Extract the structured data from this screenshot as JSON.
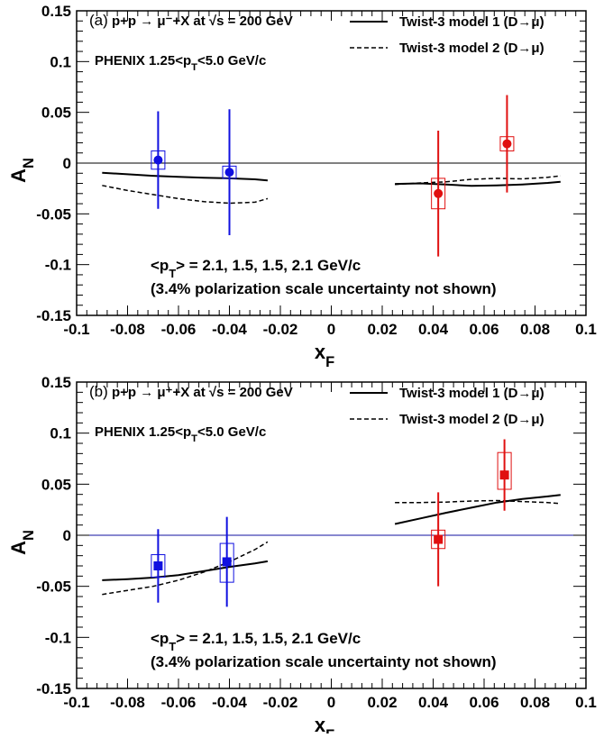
{
  "chart_data": [
    {
      "type": "scatter",
      "panel_label": "(a)",
      "reaction": "p+p → μ⁻+X at √s = 200 GeV",
      "experiment_label": "PHENIX  1.25<p_T<5.0 GeV/c",
      "xlabel": "x_F",
      "ylabel": "A_N",
      "xlim": [
        -0.1,
        0.1
      ],
      "ylim": [
        -0.15,
        0.15
      ],
      "x_ticks": [
        -0.1,
        -0.08,
        -0.06,
        -0.04,
        -0.02,
        0,
        0.02,
        0.04,
        0.06,
        0.08,
        0.1
      ],
      "x_tick_labels": [
        "-0.1",
        "-0.08",
        "-0.06",
        "-0.04",
        "-0.02",
        "0",
        "0.02",
        "0.04",
        "0.06",
        "0.08",
        "0.1"
      ],
      "y_ticks": [
        -0.15,
        -0.1,
        -0.05,
        0,
        0.05,
        0.1,
        0.15
      ],
      "y_tick_labels": [
        "-0.15",
        "-0.1",
        "-0.05",
        "0",
        "0.05",
        "0.1",
        "0.15"
      ],
      "marker": "circle",
      "annotation_pt": "<p_T> = 2.1, 1.5, 1.5, 2.1 GeV/c",
      "annotation_pol": "(3.4% polarization scale uncertainty not shown)",
      "zero_line_color": "#000000",
      "data_points": [
        {
          "x": -0.068,
          "y": 0.003,
          "stat_err": 0.048,
          "sys_low": 0.009,
          "sys_high": 0.009,
          "color": "#1010e0"
        },
        {
          "x": -0.04,
          "y": -0.009,
          "stat_err": 0.062,
          "sys_low": 0.006,
          "sys_high": 0.006,
          "color": "#1010e0"
        },
        {
          "x": 0.042,
          "y": -0.03,
          "stat_err": 0.062,
          "sys_low": 0.015,
          "sys_high": 0.015,
          "color": "#e01010"
        },
        {
          "x": 0.069,
          "y": 0.019,
          "stat_err": 0.048,
          "sys_low": 0.007,
          "sys_high": 0.007,
          "color": "#e01010"
        }
      ],
      "series": [
        {
          "name": "Twist-3 model 1 (D→μ)",
          "style": "solid",
          "x": [
            -0.09,
            -0.08,
            -0.07,
            -0.06,
            -0.05,
            -0.04,
            -0.03,
            -0.025
          ],
          "y": [
            -0.0095,
            -0.011,
            -0.0125,
            -0.0135,
            -0.0145,
            -0.015,
            -0.016,
            -0.017
          ]
        },
        {
          "name": "Twist-3 model 1 (D→μ)",
          "style": "solid",
          "x": [
            0.025,
            0.035,
            0.045,
            0.055,
            0.065,
            0.075,
            0.085,
            0.09
          ],
          "y": [
            -0.0205,
            -0.02,
            -0.021,
            -0.0225,
            -0.022,
            -0.021,
            -0.0195,
            -0.0185
          ]
        },
        {
          "name": "Twist-3 model 2 (D→μ)",
          "style": "dashed",
          "x": [
            -0.09,
            -0.08,
            -0.07,
            -0.06,
            -0.05,
            -0.04,
            -0.03,
            -0.025
          ],
          "y": [
            -0.022,
            -0.027,
            -0.031,
            -0.035,
            -0.038,
            -0.0395,
            -0.0385,
            -0.035
          ]
        },
        {
          "name": "Twist-3 model 2 (D→μ)",
          "style": "dashed",
          "x": [
            0.025,
            0.035,
            0.045,
            0.055,
            0.065,
            0.075,
            0.085,
            0.09
          ],
          "y": [
            -0.021,
            -0.0195,
            -0.0185,
            -0.016,
            -0.015,
            -0.0155,
            -0.014,
            -0.0125
          ]
        }
      ],
      "legend": [
        {
          "label": "Twist-3 model 1 (D→μ)",
          "style": "solid"
        },
        {
          "label": "Twist-3 model 2 (D→μ)",
          "style": "dashed"
        }
      ]
    },
    {
      "type": "scatter",
      "panel_label": "(b)",
      "reaction": "p+p → μ⁺+X at √s = 200 GeV",
      "experiment_label": "PHENIX  1.25<p_T<5.0 GeV/c",
      "xlabel": "x_F",
      "ylabel": "A_N",
      "xlim": [
        -0.1,
        0.1
      ],
      "ylim": [
        -0.15,
        0.15
      ],
      "x_ticks": [
        -0.1,
        -0.08,
        -0.06,
        -0.04,
        -0.02,
        0,
        0.02,
        0.04,
        0.06,
        0.08,
        0.1
      ],
      "x_tick_labels": [
        "-0.1",
        "-0.08",
        "-0.06",
        "-0.04",
        "-0.02",
        "0",
        "0.02",
        "0.04",
        "0.06",
        "0.08",
        "0.1"
      ],
      "y_ticks": [
        -0.15,
        -0.1,
        -0.05,
        0,
        0.05,
        0.1,
        0.15
      ],
      "y_tick_labels": [
        "-0.15",
        "-0.1",
        "-0.05",
        "0",
        "0.05",
        "0.1",
        "0.15"
      ],
      "marker": "square",
      "annotation_pt": "<p_T> = 2.1, 1.5, 1.5, 2.1 GeV/c",
      "annotation_pol": "(3.4% polarization scale uncertainty not shown)",
      "zero_line_color": "#1010a0",
      "data_points": [
        {
          "x": -0.068,
          "y": -0.03,
          "stat_err": 0.036,
          "sys_low": 0.011,
          "sys_high": 0.011,
          "color": "#1010e0"
        },
        {
          "x": -0.041,
          "y": -0.026,
          "stat_err": 0.044,
          "sys_low": 0.02,
          "sys_high": 0.018,
          "color": "#1010e0"
        },
        {
          "x": 0.042,
          "y": -0.004,
          "stat_err": 0.046,
          "sys_low": 0.009,
          "sys_high": 0.009,
          "color": "#e01010"
        },
        {
          "x": 0.068,
          "y": 0.059,
          "stat_err": 0.035,
          "sys_low": 0.014,
          "sys_high": 0.022,
          "color": "#e01010"
        }
      ],
      "series": [
        {
          "name": "Twist-3 model 1 (D→μ)",
          "style": "solid",
          "x": [
            -0.09,
            -0.08,
            -0.07,
            -0.06,
            -0.05,
            -0.04,
            -0.03,
            -0.025
          ],
          "y": [
            -0.044,
            -0.043,
            -0.0415,
            -0.039,
            -0.035,
            -0.031,
            -0.0275,
            -0.0255
          ]
        },
        {
          "name": "Twist-3 model 1 (D→μ)",
          "style": "solid",
          "x": [
            0.025,
            0.035,
            0.045,
            0.055,
            0.065,
            0.075,
            0.085,
            0.09
          ],
          "y": [
            0.011,
            0.0165,
            0.022,
            0.027,
            0.032,
            0.0355,
            0.038,
            0.0395
          ]
        },
        {
          "name": "Twist-3 model 2 (D→μ)",
          "style": "dashed",
          "x": [
            -0.09,
            -0.08,
            -0.07,
            -0.06,
            -0.05,
            -0.04,
            -0.03,
            -0.025
          ],
          "y": [
            -0.058,
            -0.054,
            -0.05,
            -0.044,
            -0.036,
            -0.026,
            -0.014,
            -0.0065
          ]
        },
        {
          "name": "Twist-3 model 2 (D→μ)",
          "style": "dashed",
          "x": [
            0.025,
            0.035,
            0.045,
            0.055,
            0.065,
            0.075,
            0.085,
            0.09
          ],
          "y": [
            0.032,
            0.032,
            0.0325,
            0.0335,
            0.034,
            0.033,
            0.032,
            0.031
          ]
        }
      ],
      "legend": [
        {
          "label": "Twist-3 model 1 (D→μ)",
          "style": "solid"
        },
        {
          "label": "Twist-3 model 2 (D→μ)",
          "style": "dashed"
        }
      ]
    }
  ]
}
